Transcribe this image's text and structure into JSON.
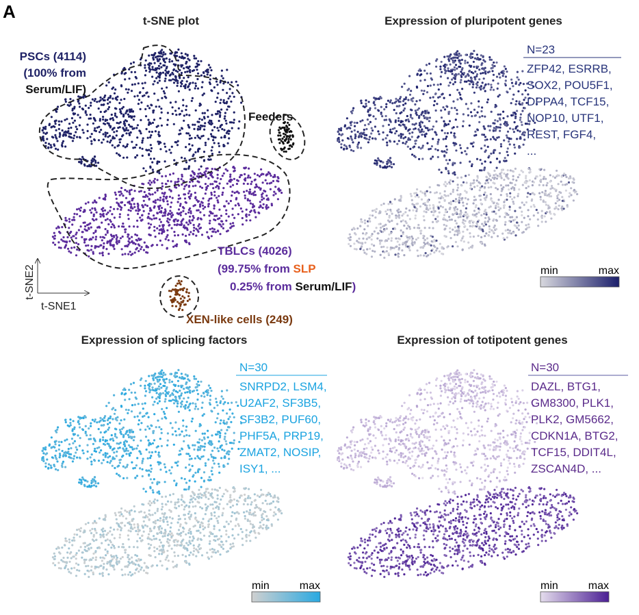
{
  "panel_letter": "A",
  "chart_data": [
    {
      "type": "scatter",
      "title": "t-SNE plot",
      "xlabel": "t-SNE1",
      "ylabel": "t-SNE2",
      "clusters": [
        {
          "name": "PSCs",
          "count": "(4114)",
          "note1": "(100% from",
          "note2": "Serum/LIF)",
          "color": "#1f2266"
        },
        {
          "name": "TBLCs",
          "count": "(4026)",
          "note1": "(99.75% from ",
          "note1b": "SLP",
          "note2": "0.25% from ",
          "note2b": "Serum/LIF",
          "note2c": ")",
          "color": "#5b2c9c",
          "accent": "#e8601c"
        },
        {
          "name": "Feeders",
          "color": "#111111"
        },
        {
          "name": "XEN-like cells (249)",
          "color": "#7a3a10"
        }
      ]
    },
    {
      "type": "scatter",
      "title": "Expression of pluripotent genes",
      "n_label": "N=23",
      "genes": [
        "ZFP42, ESRRB,",
        "SOX2, POU5F1,",
        "DPPA4, TCF15,",
        "NOP10, UTF1,",
        "REST, FGF4,",
        "..."
      ],
      "text_color": "#27337a",
      "colorbar": {
        "min_label": "min",
        "max_label": "max",
        "low": "#d8d8de",
        "high": "#1b1f6b"
      },
      "high_cluster": "PSCs"
    },
    {
      "type": "scatter",
      "title": "Expression of splicing factors",
      "n_label": "N=30",
      "genes": [
        "SNRPD2, LSM4,",
        "U2AF2, SF3B5,",
        "SF3B2, PUF60,",
        "PHF5A, PRP19,",
        "ZMAT2, NOSIP,",
        "ISY1, ..."
      ],
      "text_color": "#1aa3e0",
      "colorbar": {
        "min_label": "min",
        "max_label": "max",
        "low": "#d0d0d0",
        "high": "#29a9e1"
      },
      "high_cluster": "PSCs"
    },
    {
      "type": "scatter",
      "title": "Expression of totipotent genes",
      "n_label": "N=30",
      "genes": [
        "DAZL, BTG1,",
        "GM8300, PLK1,",
        "PLK2, GM5662,",
        "CDKN1A, BTG2,",
        "TCF15, DDIT4L,",
        "ZSCAN4D, ..."
      ],
      "text_color": "#5a2a8a",
      "colorbar": {
        "min_label": "min",
        "max_label": "max",
        "low": "#e4dcec",
        "high": "#4b1f94"
      },
      "high_cluster": "TBLCs"
    }
  ]
}
